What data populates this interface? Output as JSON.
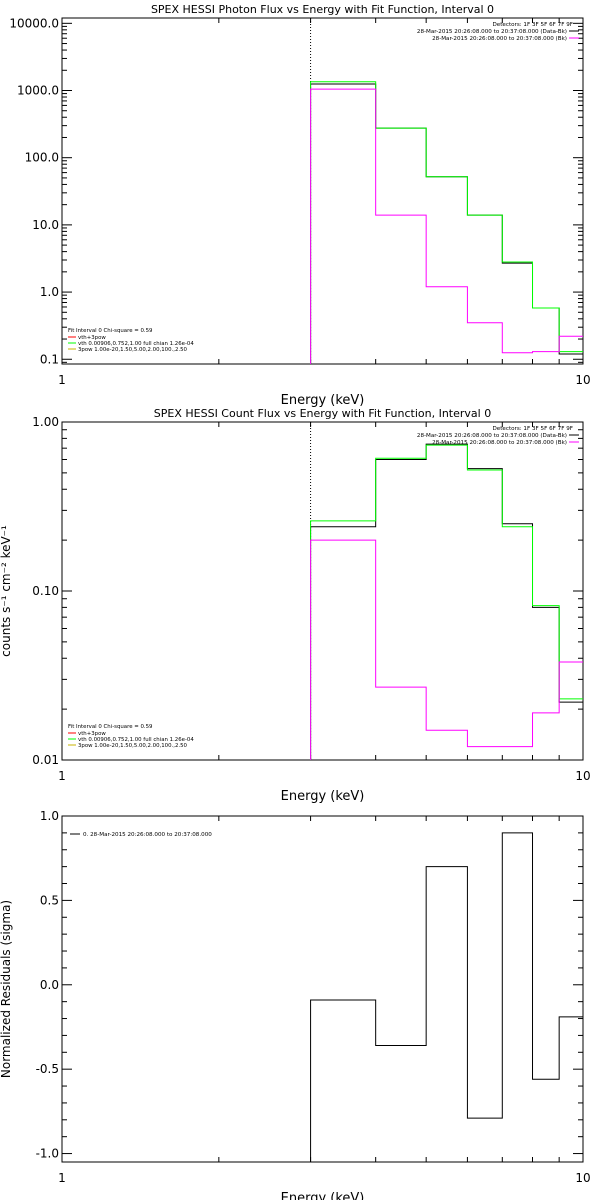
{
  "chart_data": [
    {
      "type": "line",
      "title": "SPEX HESSI Photon Flux vs Energy with Fit Function, Interval 0",
      "xlabel": "Energy (keV)",
      "ylabel": "",
      "xscale": "log",
      "yscale": "log",
      "xlim": [
        1,
        10
      ],
      "ylim": [
        0.085,
        12000
      ],
      "x_tick_labels": [
        "1",
        "10"
      ],
      "y_tick_labels": [
        "10000.0",
        "1000.0",
        "100.0",
        "10.0",
        "1.0",
        "0.1"
      ],
      "y_tick_values": [
        10000,
        1000,
        100,
        10,
        1,
        0.1
      ],
      "vline": 3,
      "edges": [
        3,
        4,
        5,
        6,
        7,
        8,
        9,
        10
      ],
      "series": [
        {
          "name": "",
          "color": "#000000",
          "values": [
            1250,
            275,
            52,
            14,
            2.7,
            0.58,
            0.12
          ]
        },
        {
          "name": "",
          "color": "#00ff00",
          "values": [
            1350,
            275,
            52,
            14,
            2.8,
            0.58,
            0.13
          ]
        },
        {
          "name": "",
          "color": "#ff00ff",
          "values": [
            1050,
            14,
            1.2,
            0.35,
            0.125,
            0.13,
            0.22
          ]
        }
      ],
      "legend_top": {
        "placement": "top-right",
        "heading": "Detectors: 1F 3F 5F 6F 7F 9F",
        "entries": [
          {
            "label": "28-Mar-2015 20:26:08.000 to 20:37:08.000 (Data-Bk)",
            "color": "#000000"
          },
          {
            "label": "28-Mar-2015 20:26:08.000 to 20:37:08.000 (Bk)",
            "color": "#ff00ff"
          }
        ]
      },
      "legend_fit": {
        "placement": "bottom-left",
        "heading": "Fit Interval 0   Chi-square = 0.59",
        "entries": [
          {
            "label": "vth+3pow",
            "color": "#ff0000"
          },
          {
            "label": "vth 0.00906,0.752,1.00  full chian 1.26e-04",
            "color": "#00ff00"
          },
          {
            "label": "3pow 1.00e-20,1.50,5.00,2.00,100.,2.50",
            "color": "#c8b400"
          }
        ]
      }
    },
    {
      "type": "line",
      "title": "SPEX HESSI Count Flux vs Energy with Fit Function, Interval 0",
      "xlabel": "Energy (keV)",
      "ylabel": "counts s⁻¹ cm⁻² keV⁻¹",
      "xscale": "log",
      "yscale": "log",
      "xlim": [
        1,
        10
      ],
      "ylim": [
        0.01,
        1.0
      ],
      "x_tick_labels": [
        "1",
        "10"
      ],
      "y_tick_labels": [
        "1.00",
        "0.10",
        "0.01"
      ],
      "y_tick_values": [
        1.0,
        0.1,
        0.01
      ],
      "vline": 3,
      "edges": [
        3,
        4,
        5,
        6,
        7,
        8,
        9,
        10
      ],
      "series": [
        {
          "name": "",
          "color": "#000000",
          "values": [
            0.24,
            0.6,
            0.74,
            0.53,
            0.25,
            0.08,
            0.022
          ]
        },
        {
          "name": "",
          "color": "#00ff00",
          "values": [
            0.26,
            0.61,
            0.73,
            0.52,
            0.24,
            0.082,
            0.023
          ]
        },
        {
          "name": "",
          "color": "#ff00ff",
          "values": [
            0.2,
            0.027,
            0.015,
            0.012,
            0.012,
            0.019,
            0.038
          ]
        }
      ],
      "legend_top": {
        "placement": "top-right",
        "heading": "Detectors: 1F 3F 5F 6F 7F 9F",
        "entries": [
          {
            "label": "28-Mar-2015 20:26:08.000 to 20:37:08.000 (Data-Bk)",
            "color": "#000000"
          },
          {
            "label": "28-Mar-2015 20:26:08.000 to 20:37:08.000 (Bk)",
            "color": "#ff00ff"
          }
        ]
      },
      "legend_fit": {
        "placement": "bottom-left",
        "heading": "Fit Interval 0   Chi-square = 0.59",
        "entries": [
          {
            "label": "vth+3pow",
            "color": "#ff0000"
          },
          {
            "label": "vth 0.00906,0.752,1.00  full chian 1.26e-04",
            "color": "#00ff00"
          },
          {
            "label": "3pow 1.00e-20,1.50,5.00,2.00,100.,2.50",
            "color": "#c8b400"
          }
        ]
      }
    },
    {
      "type": "line",
      "title": "",
      "xlabel": "Energy (keV)",
      "ylabel": "Normalized Residuals (sigma)",
      "xscale": "log",
      "yscale": "linear",
      "xlim": [
        1,
        10
      ],
      "ylim": [
        -1.05,
        1.0
      ],
      "x_tick_labels": [
        "1",
        "10"
      ],
      "y_tick_labels": [
        "1.0",
        "0.5",
        "0.0",
        "-0.5",
        "-1.0"
      ],
      "y_tick_values": [
        1.0,
        0.5,
        0.0,
        -0.5,
        -1.0
      ],
      "edges": [
        3,
        4,
        5,
        6,
        7,
        8,
        9,
        10
      ],
      "series": [
        {
          "name": "0. 28-Mar-2015 20:26:08.000 to 20:37:08.000",
          "color": "#000000",
          "values": [
            -0.09,
            -0.36,
            0.7,
            -0.79,
            0.9,
            -0.56,
            -0.19
          ]
        }
      ],
      "legend_top": {
        "placement": "top-left",
        "heading": "",
        "entries": [
          {
            "label": "0. 28-Mar-2015 20:26:08.000 to 20:37:08.000",
            "color": "#000000"
          }
        ]
      }
    }
  ]
}
